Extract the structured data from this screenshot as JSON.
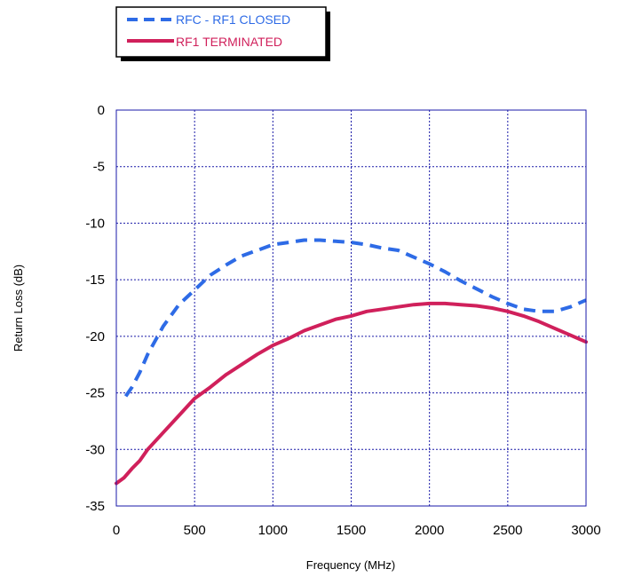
{
  "chart_data": {
    "type": "line",
    "xlabel": "Frequency (MHz)",
    "ylabel": "Return Loss (dB)",
    "xlim": [
      0,
      3000
    ],
    "ylim": [
      -35,
      0
    ],
    "xticks": [
      0,
      500,
      1000,
      1500,
      2000,
      2500,
      3000
    ],
    "yticks": [
      0,
      -5,
      -10,
      -15,
      -20,
      -25,
      -30,
      -35
    ],
    "grid": true,
    "legend_position": "top-left",
    "series": [
      {
        "name": "RFC - RF1 CLOSED",
        "color": "#2e6be6",
        "style": "dashed",
        "x": [
          60,
          100,
          150,
          200,
          300,
          400,
          500,
          600,
          700,
          800,
          900,
          1000,
          1100,
          1200,
          1300,
          1400,
          1500,
          1600,
          1700,
          1800,
          1900,
          2000,
          2100,
          2200,
          2300,
          2400,
          2500,
          2600,
          2700,
          2800,
          2900,
          3000
        ],
        "y": [
          -25.3,
          -24.5,
          -23.2,
          -21.6,
          -19.1,
          -17.2,
          -15.9,
          -14.6,
          -13.7,
          -12.9,
          -12.4,
          -11.9,
          -11.7,
          -11.5,
          -11.5,
          -11.6,
          -11.7,
          -11.9,
          -12.2,
          -12.4,
          -13.0,
          -13.6,
          -14.3,
          -15.1,
          -15.8,
          -16.5,
          -17.1,
          -17.6,
          -17.8,
          -17.8,
          -17.4,
          -16.8
        ]
      },
      {
        "name": "RF1 TERMINATED",
        "color": "#d0205b",
        "style": "solid",
        "x": [
          0,
          50,
          100,
          150,
          200,
          300,
          400,
          500,
          600,
          700,
          800,
          900,
          1000,
          1100,
          1200,
          1300,
          1400,
          1500,
          1600,
          1700,
          1800,
          1900,
          2000,
          2100,
          2200,
          2300,
          2400,
          2500,
          2600,
          2700,
          2800,
          2900,
          3000
        ],
        "y": [
          -33.0,
          -32.5,
          -31.7,
          -31.0,
          -30.0,
          -28.5,
          -27.0,
          -25.5,
          -24.5,
          -23.4,
          -22.5,
          -21.6,
          -20.8,
          -20.2,
          -19.5,
          -19.0,
          -18.5,
          -18.2,
          -17.8,
          -17.6,
          -17.4,
          -17.2,
          -17.1,
          -17.1,
          -17.2,
          -17.3,
          -17.5,
          -17.8,
          -18.2,
          -18.7,
          -19.3,
          -19.9,
          -20.5
        ]
      }
    ]
  }
}
